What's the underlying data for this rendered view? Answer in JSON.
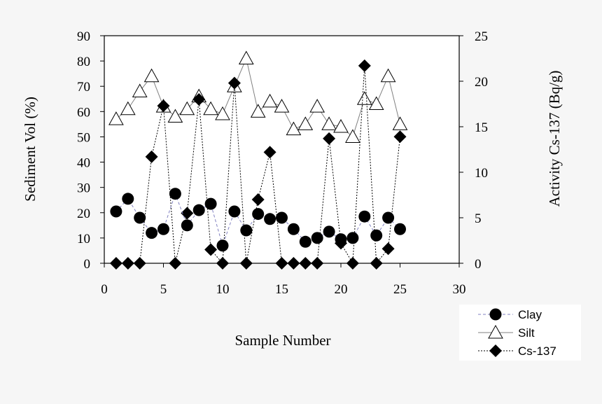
{
  "chart_data": {
    "type": "scatter",
    "xlabel": "Sample Number",
    "ylabel": "Sediment Vol (%)",
    "y2label": "Activity Cs-137 (Bq/g)",
    "xlim": [
      0,
      30
    ],
    "ylim": [
      0,
      90
    ],
    "y2lim": [
      0,
      25
    ],
    "x_ticks": [
      "0",
      "5",
      "10",
      "15",
      "20",
      "25",
      "30"
    ],
    "y_ticks": [
      "0",
      "10",
      "20",
      "30",
      "40",
      "50",
      "60",
      "70",
      "80",
      "90"
    ],
    "y2_ticks": [
      "0",
      "5",
      "10",
      "15",
      "20",
      "25"
    ],
    "grid": false,
    "legend_position": "bottom-right",
    "series": [
      {
        "name": "Clay",
        "axis": "left",
        "marker": "circle",
        "line": "dashed",
        "color": "#8080c0",
        "x": [
          1,
          2,
          3,
          4,
          5,
          6,
          7,
          8,
          9,
          10,
          11,
          12,
          13,
          14,
          15,
          16,
          17,
          18,
          19,
          20,
          21,
          22,
          23,
          24,
          25
        ],
        "y": [
          20.5,
          25.5,
          18,
          12,
          13.5,
          27.5,
          15,
          21,
          23.5,
          7,
          20.5,
          13,
          19.5,
          17.5,
          18,
          13.5,
          8.5,
          10,
          12.5,
          9.5,
          10,
          18.5,
          11,
          18,
          13.5
        ]
      },
      {
        "name": "Silt",
        "axis": "left",
        "marker": "triangle",
        "line": "solid",
        "color": "#808080",
        "x": [
          1,
          2,
          3,
          4,
          5,
          6,
          7,
          8,
          9,
          10,
          11,
          12,
          13,
          14,
          15,
          16,
          17,
          18,
          19,
          20,
          21,
          22,
          23,
          24,
          25
        ],
        "y": [
          57,
          61,
          68,
          74,
          62,
          58,
          61,
          66,
          61,
          59,
          70,
          81,
          60,
          64,
          62,
          53,
          55,
          62,
          55,
          54,
          50,
          65,
          63,
          74,
          55
        ]
      },
      {
        "name": "Cs-137",
        "axis": "right",
        "marker": "diamond",
        "line": "dotted",
        "color": "#000000",
        "x": [
          1,
          2,
          3,
          4,
          5,
          6,
          7,
          8,
          9,
          10,
          11,
          12,
          13,
          14,
          15,
          16,
          17,
          18,
          19,
          20,
          21,
          22,
          23,
          24,
          25
        ],
        "y": [
          0,
          0,
          0,
          11.7,
          17.3,
          0,
          5.5,
          18,
          1.5,
          0,
          19.8,
          0,
          7,
          12.2,
          0,
          0,
          0,
          0,
          13.7,
          2.2,
          0,
          21.7,
          0,
          1.6,
          13.9
        ]
      }
    ]
  }
}
